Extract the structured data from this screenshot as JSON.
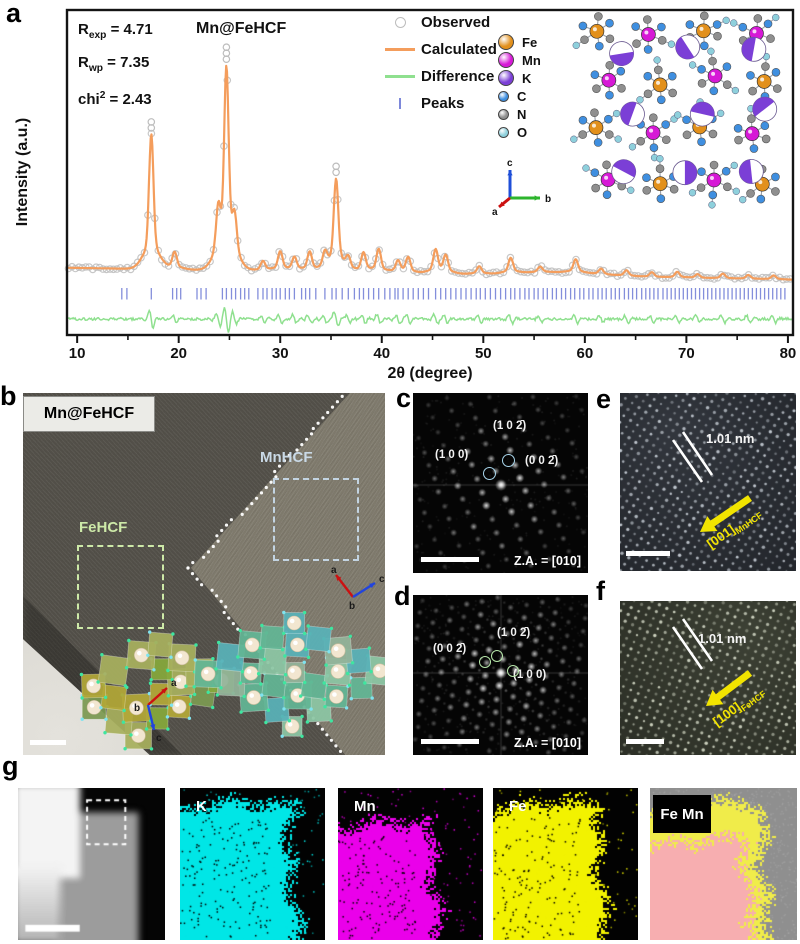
{
  "figure": {
    "panel_letters": [
      "a",
      "b",
      "c",
      "d",
      "e",
      "f",
      "g"
    ]
  },
  "chart_data": {
    "type": "line",
    "title": "Mn@FeHCF",
    "xlabel": "2θ (degree)",
    "ylabel": "Intensity (a.u.)",
    "xlim": [
      9,
      80.5
    ],
    "x_ticks": [
      10,
      20,
      30,
      40,
      50,
      60,
      70,
      80
    ],
    "grid": false,
    "legend_position": "top-right",
    "series_labels": [
      "Observed",
      "Calculated",
      "Difference",
      "Peaks"
    ],
    "refinement": {
      "R_exp": 4.71,
      "R_wp": 7.35,
      "chi2": 2.43
    },
    "colors": {
      "observed": "#bdbdbd",
      "calculated": "#f49d5c",
      "difference": "#8fe08f",
      "peaks": "#7d88da"
    },
    "peaks": [
      [
        17.3,
        0.69
      ],
      [
        19.6,
        0.09
      ],
      [
        23.9,
        0.24
      ],
      [
        24.7,
        1.0
      ],
      [
        25.5,
        0.2
      ],
      [
        28.3,
        0.05
      ],
      [
        30.0,
        0.1
      ],
      [
        31.4,
        0.07
      ],
      [
        32.9,
        0.1
      ],
      [
        34.4,
        0.08
      ],
      [
        35.5,
        0.47
      ],
      [
        36.7,
        0.06
      ],
      [
        38.2,
        0.1
      ],
      [
        39.7,
        0.12
      ],
      [
        41.6,
        0.06
      ],
      [
        42.6,
        0.08
      ],
      [
        45.3,
        0.12
      ],
      [
        46.3,
        0.09
      ],
      [
        49.6,
        0.04
      ],
      [
        52.7,
        0.08
      ],
      [
        55.6,
        0.03
      ],
      [
        59.1,
        0.07
      ],
      [
        61.6,
        0.03
      ],
      [
        64.1,
        0.03
      ],
      [
        66.6,
        0.025
      ],
      [
        69.1,
        0.03
      ],
      [
        71.1,
        0.02
      ],
      [
        73.6,
        0.025
      ],
      [
        76.1,
        0.02
      ],
      [
        78.6,
        0.02
      ]
    ],
    "bragg_ticks": [
      14.4,
      14.9,
      17.3,
      19.4,
      19.8,
      20.2,
      21.8,
      22.2,
      22.7,
      24.3,
      24.7,
      25.2,
      25.6,
      26.1,
      26.5,
      26.9,
      27.8,
      28.3,
      28.7,
      29.2,
      29.6,
      30.0,
      30.5,
      30.9,
      31.4,
      32.1,
      32.5,
      32.9,
      33.5,
      34.4,
      35.1,
      35.5,
      36.1,
      36.7,
      37.3,
      37.8,
      38.2,
      38.7,
      39.2,
      39.7,
      40.3,
      40.8,
      41.3,
      41.6,
      42.1,
      42.6,
      43.1,
      43.6,
      44.1,
      44.6,
      45.3,
      45.8,
      46.3,
      46.8,
      47.3,
      47.8,
      48.3,
      48.8,
      49.3,
      49.7,
      50.2,
      50.7,
      51.2,
      51.7,
      52.2,
      52.7,
      53.1,
      53.6,
      54.1,
      54.5,
      55.0,
      55.4,
      55.9,
      56.3,
      56.8,
      57.2,
      57.7,
      58.1,
      58.6,
      59.0,
      59.5,
      59.9,
      60.4,
      60.8,
      61.3,
      61.7,
      62.1,
      62.6,
      63.0,
      63.4,
      63.9,
      64.3,
      64.7,
      65.1,
      65.6,
      66.0,
      66.4,
      66.8,
      67.2,
      67.7,
      68.1,
      68.5,
      68.9,
      69.3,
      69.7,
      70.1,
      70.5,
      70.9,
      71.3,
      71.7,
      72.1,
      72.5,
      72.9,
      73.3,
      73.7,
      74.1,
      74.5,
      74.9,
      75.3,
      75.7,
      76.1,
      76.5,
      76.9,
      77.3,
      77.7,
      78.1,
      78.5,
      78.9,
      79.3,
      79.7
    ]
  },
  "panels": {
    "a": {
      "title": "Mn@FeHCF",
      "stats": [
        {
          "pre": "R",
          "sub": "exp",
          "post": " = 4.71"
        },
        {
          "pre": "R",
          "sub": "wp",
          "post": " = 7.35"
        },
        {
          "pre": "chi",
          "sup": "2",
          "post": " = 2.43"
        }
      ],
      "legend": [
        {
          "label": "Observed",
          "marker": "circle",
          "color": "#bdbdbd"
        },
        {
          "label": "Calculated",
          "marker": "line",
          "color": "#f49d5c"
        },
        {
          "label": "Difference",
          "marker": "line",
          "color": "#8fe08f"
        },
        {
          "label": "Peaks",
          "marker": "tick",
          "color": "#7d88da"
        }
      ],
      "atoms": [
        {
          "label": "Fe",
          "color": "#e2901c",
          "r": 7
        },
        {
          "label": "Mn",
          "color": "#d619d6",
          "r": 7
        },
        {
          "label": "K",
          "color": "#7b3fd6",
          "r": 7
        },
        {
          "label": "C",
          "color": "#3f8fe0",
          "r": 4.5
        },
        {
          "label": "N",
          "color": "#8f8f8f",
          "r": 4.5
        },
        {
          "label": "O",
          "color": "#8ed0dc",
          "r": 4.5
        }
      ],
      "triad": {
        "up": "c",
        "right": "b",
        "diag": "a"
      }
    },
    "b": {
      "tag": "Mn@FeHCF",
      "region_left": "FeHCF",
      "region_right": "MnHCF",
      "region_left_color": "#cde9a8",
      "region_right_color": "#c3d4e2",
      "triad": {
        "a": "a",
        "b": "b",
        "c": "c"
      }
    },
    "c": {
      "spots": [
        {
          "text": "(1 0 0)"
        },
        {
          "text": "(1 0 2̄)"
        },
        {
          "text": "(0 0 2̄)"
        }
      ],
      "zone": "Z.A. = [010]",
      "circle_color": "#a9d6ec"
    },
    "d": {
      "spots": [
        {
          "text": "(0 0 2̄)"
        },
        {
          "text": "(1 0 2̄)"
        },
        {
          "text": "(1 0 0)"
        }
      ],
      "zone": "Z.A. = [010]",
      "circle_color": "#b7e7aa"
    },
    "e": {
      "spacing": "1.01 nm",
      "dir": "[001]",
      "dir_sub": "MnHCF",
      "arrow_color": "#f2e400"
    },
    "f": {
      "spacing": "1.01 nm",
      "dir": "[100]",
      "dir_sub": "FeHCF",
      "arrow_color": "#f2e400"
    },
    "g": {
      "maps": [
        {
          "label": ""
        },
        {
          "label": "K",
          "color": "#00e6e6"
        },
        {
          "label": "Mn",
          "color": "#ea00ea"
        },
        {
          "label": "Fe",
          "color": "#f2f200"
        },
        {
          "label": "Fe Mn",
          "rim_color": "#f0ec4a",
          "core_color": "#f7a8b8",
          "bg": "#8f8f8f"
        }
      ]
    }
  }
}
